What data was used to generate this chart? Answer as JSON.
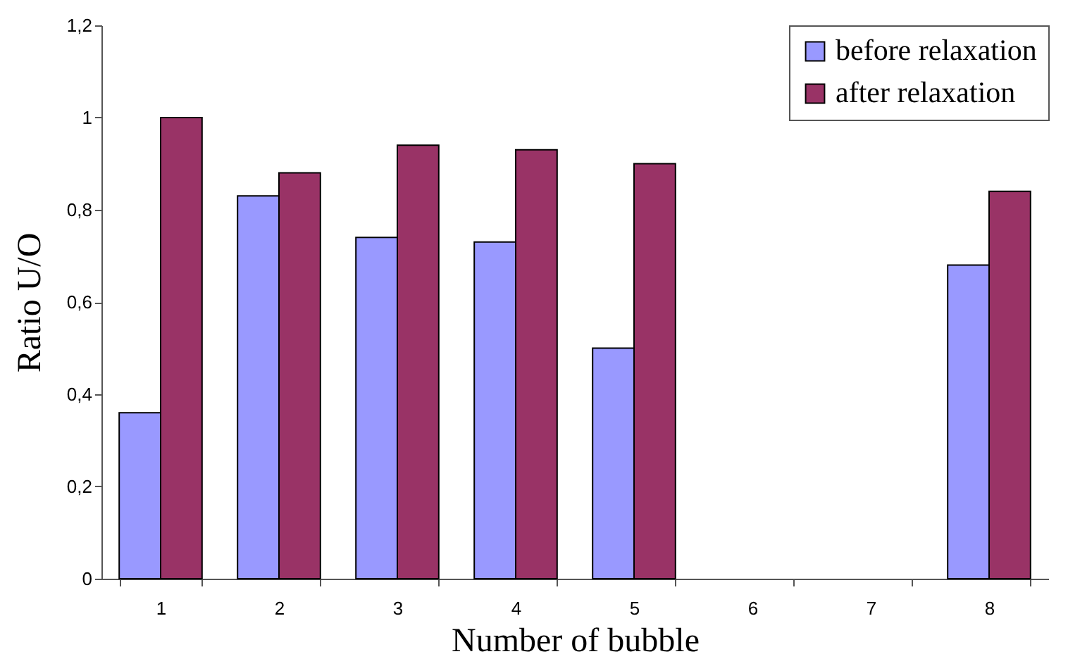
{
  "chart_data": {
    "type": "bar",
    "xlabel": "Number of bubble",
    "ylabel": "Ratio U/O",
    "categories": [
      "1",
      "2",
      "3",
      "4",
      "5",
      "6",
      "7",
      "8"
    ],
    "series": [
      {
        "name": "before relaxation",
        "color": "#9999ff",
        "values": [
          0.36,
          0.83,
          0.74,
          0.73,
          0.5,
          null,
          null,
          0.68
        ]
      },
      {
        "name": "after relaxation",
        "color": "#993366",
        "values": [
          1.0,
          0.88,
          0.94,
          0.93,
          0.9,
          null,
          null,
          0.84
        ]
      }
    ],
    "ylim": [
      0,
      1.2
    ],
    "yticks": [
      0,
      {
        "value": 0.2,
        "label": "0,2"
      },
      {
        "value": 0.4,
        "label": "0,4"
      },
      {
        "value": 0.6,
        "label": "0,6"
      },
      {
        "value": 0.8,
        "label": "0,8"
      },
      1,
      {
        "value": 1.2,
        "label": "1,2"
      }
    ],
    "grid": false,
    "legend": "top right"
  }
}
